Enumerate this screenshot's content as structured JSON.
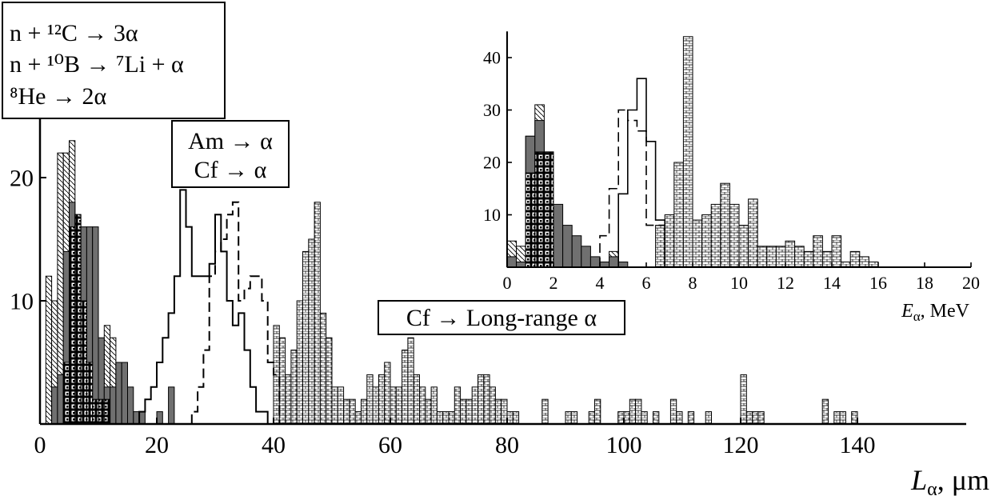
{
  "colors": {
    "ink": "#000000",
    "paper": "#ffffff",
    "dark_fill": "#707070"
  },
  "chart_data": [
    {
      "type": "bar",
      "role": "main",
      "xlabel_main": "L",
      "xlabel_sub": "α",
      "xlabel_unit": ", μm",
      "xlim": [
        0,
        150
      ],
      "ylim": [
        0,
        25
      ],
      "xticks": [
        0,
        20,
        40,
        60,
        80,
        100,
        120,
        140
      ],
      "yticks": [
        10,
        20
      ],
      "bin_width": 1,
      "legends": [
        {
          "lines": [
            "n + ¹²C → 3α",
            "n + ¹⁰B → ⁷Li + α",
            "⁸He → 2α"
          ]
        },
        {
          "lines": [
            "Am → α",
            "Cf → α"
          ]
        },
        {
          "lines": [
            "Cf → Long-range α"
          ]
        }
      ],
      "series": [
        {
          "key": "he8_hatch",
          "style": "hatch",
          "x": [
            1,
            2,
            3,
            4,
            5,
            6,
            7,
            8,
            9,
            10,
            11,
            12,
            13,
            14
          ],
          "values": [
            12,
            10,
            22,
            22,
            23,
            8,
            7,
            6,
            7,
            5,
            8,
            7,
            5,
            2
          ]
        },
        {
          "key": "b10_dark",
          "style": "dark",
          "x": [
            2,
            3,
            4,
            5,
            6,
            7,
            8,
            9,
            10,
            11,
            12,
            13,
            14,
            15,
            16,
            17,
            18,
            19,
            20,
            21,
            22
          ],
          "values": [
            3,
            4,
            14,
            18,
            17,
            16,
            16,
            16,
            7,
            3,
            3,
            5,
            5,
            3,
            1,
            1,
            0,
            0,
            1,
            0,
            3
          ]
        },
        {
          "key": "c12_squares",
          "style": "squares",
          "x": [
            4,
            5,
            6,
            7,
            8,
            9,
            10,
            11
          ],
          "values": [
            5,
            16,
            17,
            10,
            5,
            2,
            2,
            2
          ]
        },
        {
          "key": "am_dashed",
          "style": "dashed",
          "x": [
            26,
            27,
            28,
            29,
            30,
            31,
            32,
            33,
            34,
            35,
            36,
            37,
            38,
            39,
            40
          ],
          "values": [
            1,
            3,
            6,
            12,
            14,
            15,
            17,
            18,
            10,
            11,
            12,
            12,
            10,
            5,
            4
          ]
        },
        {
          "key": "cf_solid",
          "style": "solid",
          "x": [
            17,
            18,
            19,
            20,
            21,
            22,
            23,
            24,
            25,
            26,
            27,
            28,
            29,
            30,
            31,
            32,
            33,
            34,
            35,
            36,
            37,
            38
          ],
          "values": [
            1,
            2,
            3,
            5,
            7,
            9,
            12,
            19,
            16,
            12,
            12,
            12,
            13,
            17,
            14,
            10,
            8,
            9,
            6,
            3,
            1,
            1
          ]
        },
        {
          "key": "cf_long_bricks",
          "style": "bricks",
          "x": [
            40,
            41,
            42,
            43,
            44,
            45,
            46,
            47,
            48,
            49,
            50,
            51,
            52,
            53,
            54,
            55,
            56,
            57,
            58,
            59,
            60,
            61,
            62,
            63,
            64,
            65,
            66,
            67,
            68,
            69,
            70,
            71,
            72,
            73,
            74,
            75,
            76,
            77,
            78,
            79,
            80,
            81,
            82,
            83,
            84,
            85,
            86,
            87,
            88,
            89,
            90,
            91,
            92,
            93,
            94,
            95,
            96,
            97,
            98,
            99,
            100,
            101,
            102,
            103,
            104,
            105,
            106,
            107,
            108,
            109,
            110,
            111,
            112,
            113,
            114,
            115,
            116,
            117,
            118,
            119,
            120,
            121,
            122,
            123,
            124,
            125,
            126,
            127,
            128,
            129,
            130,
            131,
            132,
            133,
            134,
            135,
            136,
            137,
            138,
            139,
            140
          ],
          "values": [
            8,
            7,
            4,
            6,
            10,
            14,
            15,
            18,
            9,
            7,
            3,
            3,
            2,
            2,
            1,
            2,
            4,
            3,
            4,
            5,
            3,
            3,
            6,
            7,
            4,
            3,
            2,
            3,
            1,
            1,
            1,
            3,
            2,
            2,
            3,
            4,
            4,
            3,
            2,
            2,
            1,
            1,
            0,
            0,
            0,
            0,
            2,
            0,
            0,
            0,
            1,
            1,
            0,
            0,
            1,
            2,
            0,
            0,
            0,
            1,
            1,
            2,
            2,
            1,
            0,
            1,
            0,
            0,
            2,
            1,
            0,
            1,
            0,
            0,
            1,
            0,
            0,
            0,
            0,
            0,
            4,
            1,
            1,
            1,
            0,
            0,
            0,
            0,
            0,
            0,
            0,
            0,
            0,
            0,
            2,
            0,
            1,
            1,
            0,
            1,
            0
          ]
        }
      ]
    },
    {
      "type": "bar",
      "role": "inset",
      "xlabel_main": "E",
      "xlabel_sub": "α",
      "xlabel_unit": ", MeV",
      "xlim": [
        0,
        20
      ],
      "ylim": [
        0,
        45
      ],
      "xticks": [
        0,
        2,
        4,
        6,
        8,
        10,
        12,
        14,
        16,
        18,
        20
      ],
      "yticks": [
        10,
        20,
        30,
        40
      ],
      "bin_width": 0.4,
      "series": [
        {
          "key": "he8_hatch",
          "style": "hatch",
          "x": [
            0,
            0.4,
            0.8,
            1.2,
            2.0,
            2.4,
            4.4
          ],
          "values": [
            5,
            4,
            25,
            31,
            6,
            2,
            3
          ]
        },
        {
          "key": "b10_dark",
          "style": "dark",
          "x": [
            0,
            0.4,
            0.8,
            1.2,
            1.6,
            2.0,
            2.4,
            2.8,
            3.2,
            3.6,
            4.0,
            4.4,
            4.8
          ],
          "values": [
            2,
            1,
            25,
            28,
            22,
            12,
            8,
            6,
            4,
            2,
            1,
            2,
            1
          ]
        },
        {
          "key": "c12_squares",
          "style": "squares",
          "x": [
            0.8,
            1.2,
            1.6
          ],
          "values": [
            18,
            22,
            22
          ]
        },
        {
          "key": "am_dashed",
          "style": "dashed",
          "x": [
            4.0,
            4.4,
            4.8,
            5.2,
            5.6,
            6.0,
            6.4
          ],
          "values": [
            6,
            15,
            30,
            28,
            26,
            8,
            8
          ]
        },
        {
          "key": "cf_solid",
          "style": "solid",
          "x": [
            4.8,
            5.2,
            5.6,
            6.0,
            6.4
          ],
          "values": [
            14,
            30,
            36,
            24,
            9
          ]
        },
        {
          "key": "cf_long_bricks",
          "style": "bricks",
          "x": [
            6.4,
            6.8,
            7.2,
            7.6,
            8.0,
            8.4,
            8.8,
            9.2,
            9.6,
            10.0,
            10.4,
            10.8,
            11.2,
            11.6,
            12.0,
            12.4,
            12.8,
            13.2,
            13.6,
            14.0,
            14.4,
            14.8,
            15.2,
            15.6,
            16.0
          ],
          "values": [
            8,
            10,
            20,
            44,
            9,
            10,
            12,
            16,
            12,
            8,
            13,
            4,
            4,
            4,
            5,
            4,
            3,
            6,
            3,
            6,
            1,
            3,
            2,
            1,
            0
          ]
        }
      ]
    }
  ]
}
